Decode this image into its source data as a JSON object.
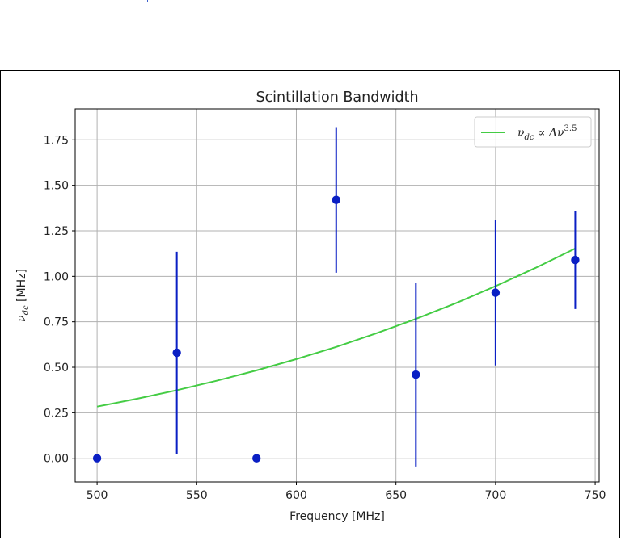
{
  "chart_data": {
    "type": "scatter",
    "title": "Scintillation Bandwidth",
    "xlabel": "Frequency [MHz]",
    "ylabel": {
      "sym": "ν",
      "sub": "dc",
      "unit": " [MHz]"
    },
    "xlim": [
      489,
      752
    ],
    "ylim": [
      -0.13,
      1.92
    ],
    "xticks": [
      500,
      550,
      600,
      650,
      700,
      750
    ],
    "yticks": [
      0.0,
      0.25,
      0.5,
      0.75,
      1.0,
      1.25,
      1.5,
      1.75
    ],
    "ytick_labels": [
      "0.00",
      "0.25",
      "0.50",
      "0.75",
      "1.00",
      "1.25",
      "1.50",
      "1.75"
    ],
    "grid": true,
    "legend_placement": "top-right",
    "colors": {
      "points": "#0a1fc4",
      "fit": "#44cc44",
      "grid": "#b0b0b0"
    },
    "series": [
      {
        "kind": "errorbar",
        "points": [
          {
            "x": 500,
            "y": 0.0,
            "yerr": 0.0
          },
          {
            "x": 540,
            "y": 0.58,
            "yerr": 0.555
          },
          {
            "x": 580,
            "y": 0.0,
            "yerr": 0.0
          },
          {
            "x": 620,
            "y": 1.42,
            "yerr": 0.4
          },
          {
            "x": 660,
            "y": 0.46,
            "yerr": 0.505
          },
          {
            "x": 700,
            "y": 0.91,
            "yerr": 0.4
          },
          {
            "x": 740,
            "y": 1.09,
            "yerr": 0.27
          }
        ]
      },
      {
        "kind": "line",
        "legend": {
          "sym": "ν",
          "sub": "dc",
          "mid": " ∝ Δν",
          "sup": "3.5"
        },
        "x": [
          500,
          520,
          540,
          560,
          580,
          600,
          620,
          640,
          660,
          680,
          700,
          720,
          740
        ],
        "y": [
          0.284,
          0.327,
          0.374,
          0.426,
          0.483,
          0.545,
          0.612,
          0.686,
          0.766,
          0.852,
          0.946,
          1.046,
          1.153
        ]
      }
    ]
  }
}
